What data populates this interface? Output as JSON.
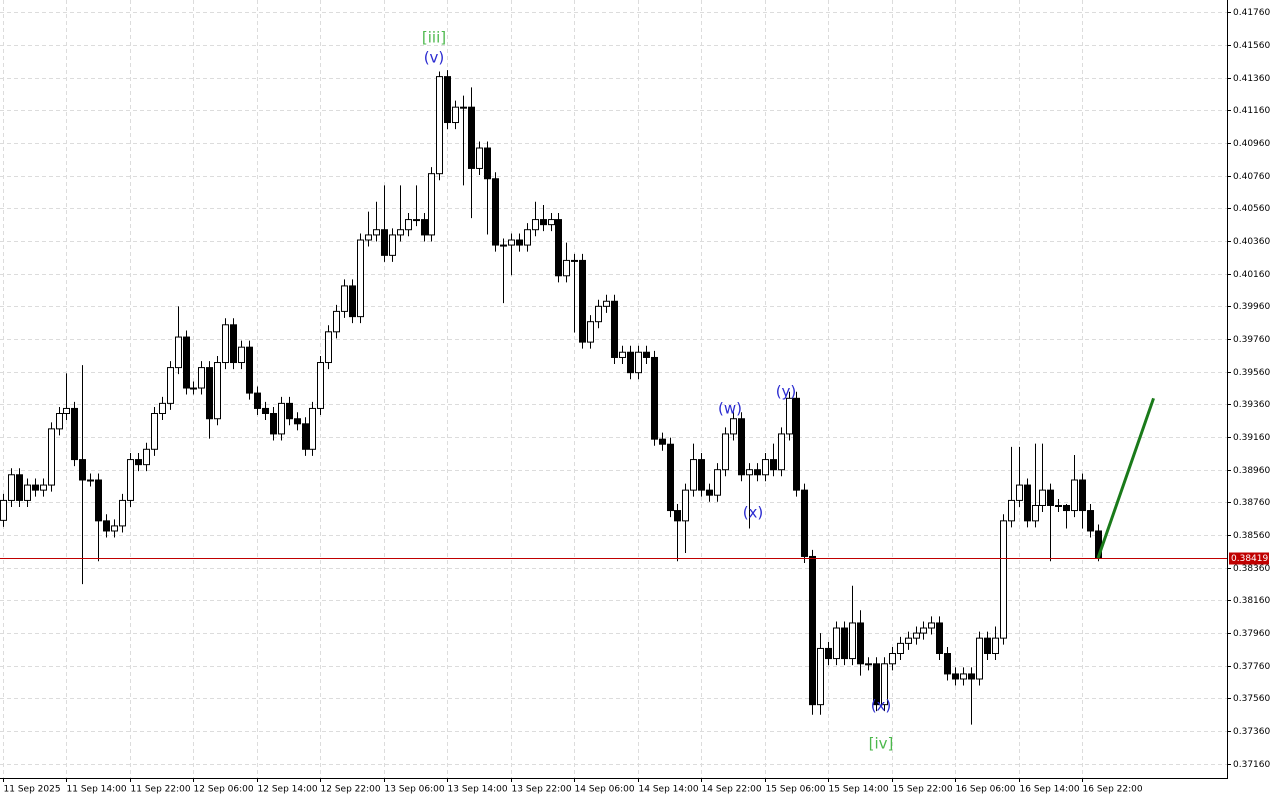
{
  "chart_data": {
    "type": "candlestick",
    "categories": [
      "11 Sep 2025",
      null,
      null,
      null,
      null,
      null,
      null,
      null,
      "11 Sep 14:00",
      null,
      null,
      null,
      null,
      null,
      null,
      null,
      "11 Sep 22:00",
      null,
      null,
      null,
      null,
      null,
      null,
      null,
      "12 Sep 06:00",
      null,
      null,
      null,
      null,
      null,
      null,
      null,
      "12 Sep 14:00",
      null,
      null,
      null,
      null,
      null,
      null,
      null,
      "12 Sep 22:00",
      null,
      null,
      null,
      null,
      null,
      null,
      null,
      "13 Sep 06:00",
      null,
      null,
      null,
      null,
      null,
      null,
      null,
      "13 Sep 14:00",
      null,
      null,
      null,
      null,
      null,
      null,
      null,
      "13 Sep 22:00",
      null,
      null,
      null,
      null,
      null,
      null,
      null,
      "14 Sep 06:00",
      null,
      null,
      null,
      null,
      null,
      null,
      null,
      "14 Sep 14:00",
      null,
      null,
      null,
      null,
      null,
      null,
      null,
      "14 Sep 22:00",
      null,
      null,
      null,
      null,
      null,
      null,
      null,
      "15 Sep 06:00",
      null,
      null,
      null,
      null,
      null,
      null,
      null,
      "15 Sep 14:00",
      null,
      null,
      null,
      null,
      null,
      null,
      null,
      "15 Sep 22:00",
      null,
      null,
      null,
      null,
      null,
      null,
      null,
      "16 Sep 06:00",
      null,
      null,
      null,
      null,
      null,
      null,
      null,
      "16 Sep 14:00",
      null,
      null,
      null,
      null,
      null,
      null,
      null,
      "16 Sep 22:00",
      null,
      null
    ],
    "open": [
      0.3865,
      0.38772,
      0.38929,
      0.38772,
      0.38866,
      0.38835,
      0.38866,
      0.3921,
      0.39304,
      0.39335,
      0.39022,
      0.38897,
      0.38897,
      0.38647,
      0.38585,
      0.38616,
      0.38772,
      0.39022,
      0.38991,
      0.39085,
      0.39304,
      0.39366,
      0.39585,
      0.39772,
      0.3946,
      0.3946,
      0.39585,
      0.39272,
      0.39616,
      0.39847,
      0.39616,
      0.3971,
      0.39429,
      0.39335,
      0.39304,
      0.39179,
      0.39366,
      0.39272,
      0.39241,
      0.39085,
      0.39335,
      0.39616,
      0.39804,
      0.39929,
      0.40085,
      0.39897,
      0.40366,
      0.40397,
      0.40429,
      0.40272,
      0.40397,
      0.40429,
      0.40491,
      0.40491,
      0.40397,
      0.40772,
      0.41366,
      0.41085,
      0.41179,
      0.41179,
      0.40804,
      0.40929,
      0.40741,
      0.40335,
      0.40335,
      0.40366,
      0.40335,
      0.40429,
      0.40491,
      0.4046,
      0.40491,
      0.40147,
      0.40241,
      0.40241,
      0.39741,
      0.39866,
      0.3996,
      0.39991,
      0.39647,
      0.39679,
      0.39554,
      0.39679,
      0.39647,
      0.39147,
      0.39116,
      0.3871,
      0.38647,
      0.38835,
      0.39022,
      0.38835,
      0.38804,
      0.3896,
      0.39179,
      0.39272,
      0.38929,
      0.3896,
      0.38929,
      0.39022,
      0.3896,
      0.39179,
      0.39397,
      0.38835,
      0.38429,
      0.37522,
      0.37866,
      0.37804,
      0.37991,
      0.37804,
      0.38022,
      0.37772,
      0.37772,
      0.37522,
      0.37772,
      0.37835,
      0.37897,
      0.37929,
      0.3796,
      0.37991,
      0.38022,
      0.37835,
      0.3771,
      0.37679,
      0.3771,
      0.37679,
      0.37929,
      0.37835,
      0.37929,
      0.38647,
      0.38772,
      0.38866,
      0.38647,
      0.38741,
      0.38835,
      0.38741,
      0.38741,
      0.3871,
      0.38897,
      0.3871,
      0.38585
    ],
    "high": [
      0.38812,
      0.38969,
      0.38969,
      0.38906,
      0.38906,
      0.38906,
      0.3925,
      0.39344,
      0.3955,
      0.39375,
      0.396,
      0.38937,
      0.38937,
      0.38687,
      0.38656,
      0.38812,
      0.39062,
      0.39062,
      0.39125,
      0.39344,
      0.39406,
      0.39625,
      0.3996,
      0.39812,
      0.395,
      0.39625,
      0.39625,
      0.39656,
      0.39887,
      0.39887,
      0.3975,
      0.3975,
      0.39469,
      0.39375,
      0.39344,
      0.39406,
      0.39406,
      0.39312,
      0.39281,
      0.39375,
      0.39656,
      0.39844,
      0.39969,
      0.40125,
      0.40125,
      0.40406,
      0.4054,
      0.406,
      0.407,
      0.40437,
      0.407,
      0.40531,
      0.407,
      0.40531,
      0.40812,
      0.41397,
      0.41406,
      0.41219,
      0.4125,
      0.413,
      0.40969,
      0.40969,
      0.40781,
      0.40375,
      0.40406,
      0.40406,
      0.40469,
      0.406,
      0.4058,
      0.40531,
      0.40531,
      0.4035,
      0.40281,
      0.40281,
      0.39906,
      0.4,
      0.40031,
      0.40031,
      0.39719,
      0.39719,
      0.39719,
      0.39719,
      0.39687,
      0.39187,
      0.39156,
      0.3875,
      0.38875,
      0.3912,
      0.39062,
      0.38875,
      0.39,
      0.39219,
      0.39312,
      0.39312,
      0.39,
      0.39,
      0.39062,
      0.3912,
      0.39219,
      0.39437,
      0.39437,
      0.38875,
      0.38469,
      0.3796,
      0.37906,
      0.38031,
      0.38031,
      0.3825,
      0.381,
      0.37812,
      0.37812,
      0.37812,
      0.37875,
      0.37937,
      0.37969,
      0.38,
      0.38031,
      0.38062,
      0.38062,
      0.37875,
      0.3775,
      0.3775,
      0.3775,
      0.37969,
      0.37969,
      0.38,
      0.38687,
      0.391,
      0.391,
      0.38906,
      0.3912,
      0.3912,
      0.38875,
      0.38781,
      0.3875,
      0.3905,
      0.38937,
      0.3875,
      0.38625
    ],
    "low": [
      0.3861,
      0.38732,
      0.38732,
      0.38732,
      0.38795,
      0.38795,
      0.38826,
      0.3917,
      0.39264,
      0.38982,
      0.3826,
      0.38857,
      0.384,
      0.38545,
      0.38545,
      0.38576,
      0.38732,
      0.38951,
      0.38951,
      0.39045,
      0.39264,
      0.39326,
      0.39545,
      0.3942,
      0.3942,
      0.3942,
      0.3915,
      0.39232,
      0.39576,
      0.39576,
      0.39576,
      0.39389,
      0.39295,
      0.39264,
      0.39139,
      0.39139,
      0.39232,
      0.39201,
      0.39045,
      0.39045,
      0.39295,
      0.39576,
      0.39764,
      0.39889,
      0.39857,
      0.39857,
      0.40326,
      0.40357,
      0.40232,
      0.40232,
      0.40357,
      0.40389,
      0.40451,
      0.40357,
      0.40357,
      0.40732,
      0.41045,
      0.41045,
      0.407,
      0.405,
      0.40764,
      0.404,
      0.40295,
      0.3998,
      0.4015,
      0.40295,
      0.40295,
      0.40389,
      0.4042,
      0.4042,
      0.40107,
      0.40107,
      0.398,
      0.39701,
      0.39701,
      0.39826,
      0.3992,
      0.39607,
      0.39607,
      0.39514,
      0.39514,
      0.39607,
      0.39107,
      0.39076,
      0.3867,
      0.384,
      0.3845,
      0.38795,
      0.38795,
      0.38764,
      0.38764,
      0.3892,
      0.39139,
      0.38889,
      0.386,
      0.38889,
      0.38889,
      0.3892,
      0.3892,
      0.39139,
      0.38795,
      0.38389,
      0.3746,
      0.3746,
      0.37764,
      0.37764,
      0.37764,
      0.37764,
      0.377,
      0.37732,
      0.37482,
      0.37482,
      0.37732,
      0.37795,
      0.37857,
      0.37889,
      0.3792,
      0.37951,
      0.37795,
      0.3767,
      0.37639,
      0.37639,
      0.374,
      0.37639,
      0.37795,
      0.37795,
      0.37889,
      0.38607,
      0.38732,
      0.38607,
      0.38607,
      0.38701,
      0.384,
      0.38701,
      0.386,
      0.3867,
      0.386,
      0.38545,
      0.384
    ],
    "close": [
      0.38772,
      0.38929,
      0.38772,
      0.38866,
      0.38835,
      0.38866,
      0.3921,
      0.39304,
      0.39335,
      0.39022,
      0.38897,
      0.38897,
      0.38647,
      0.38585,
      0.38616,
      0.38772,
      0.39022,
      0.38991,
      0.39085,
      0.39304,
      0.39366,
      0.39585,
      0.39772,
      0.3946,
      0.3946,
      0.39585,
      0.39272,
      0.39616,
      0.39847,
      0.39616,
      0.3971,
      0.39429,
      0.39335,
      0.39304,
      0.39179,
      0.39366,
      0.39272,
      0.39241,
      0.39085,
      0.39335,
      0.39616,
      0.39804,
      0.39929,
      0.40085,
      0.39897,
      0.40366,
      0.40397,
      0.40429,
      0.40272,
      0.40397,
      0.40429,
      0.40491,
      0.40491,
      0.40397,
      0.40772,
      0.41366,
      0.41085,
      0.41179,
      0.41179,
      0.40804,
      0.40929,
      0.40741,
      0.40335,
      0.40335,
      0.40366,
      0.40335,
      0.40429,
      0.40491,
      0.4046,
      0.40491,
      0.40147,
      0.40241,
      0.40241,
      0.39741,
      0.39866,
      0.3996,
      0.39991,
      0.39647,
      0.39679,
      0.39554,
      0.39679,
      0.39647,
      0.39147,
      0.39116,
      0.3871,
      0.38647,
      0.38835,
      0.39022,
      0.38835,
      0.38804,
      0.3896,
      0.39179,
      0.39272,
      0.38929,
      0.3896,
      0.38929,
      0.39022,
      0.3896,
      0.39179,
      0.39397,
      0.38835,
      0.38429,
      0.37522,
      0.37866,
      0.37804,
      0.37991,
      0.37804,
      0.38022,
      0.37772,
      0.37772,
      0.37522,
      0.37772,
      0.37835,
      0.37897,
      0.37929,
      0.3796,
      0.37991,
      0.38022,
      0.37835,
      0.3771,
      0.37679,
      0.3771,
      0.37679,
      0.37929,
      0.37835,
      0.37929,
      0.38647,
      0.38772,
      0.38866,
      0.38647,
      0.38741,
      0.38835,
      0.38741,
      0.38741,
      0.3871,
      0.38897,
      0.3871,
      0.38585,
      0.38419
    ],
    "ylim": [
      0.37073,
      0.41835
    ],
    "yticks": [
      {
        "value": 0.3716,
        "label": "0.37160"
      },
      {
        "value": 0.3736,
        "label": "0.37360"
      },
      {
        "value": 0.3756,
        "label": "0.37560"
      },
      {
        "value": 0.3776,
        "label": "0.37760"
      },
      {
        "value": 0.3796,
        "label": "0.37960"
      },
      {
        "value": 0.3816,
        "label": "0.38160"
      },
      {
        "value": 0.3836,
        "label": "0.38360"
      },
      {
        "value": 0.3856,
        "label": "0.38560"
      },
      {
        "value": 0.3876,
        "label": "0.38760"
      },
      {
        "value": 0.3896,
        "label": "0.38960"
      },
      {
        "value": 0.3916,
        "label": "0.39160"
      },
      {
        "value": 0.3936,
        "label": "0.39360"
      },
      {
        "value": 0.3956,
        "label": "0.39560"
      },
      {
        "value": 0.3976,
        "label": "0.39760"
      },
      {
        "value": 0.3996,
        "label": "0.39960"
      },
      {
        "value": 0.4016,
        "label": "0.40160"
      },
      {
        "value": 0.4036,
        "label": "0.40360"
      },
      {
        "value": 0.4056,
        "label": "0.40560"
      },
      {
        "value": 0.4076,
        "label": "0.40760"
      },
      {
        "value": 0.4096,
        "label": "0.40960"
      },
      {
        "value": 0.4116,
        "label": "0.41160"
      },
      {
        "value": 0.4136,
        "label": "0.41360"
      },
      {
        "value": 0.4156,
        "label": "0.41560"
      },
      {
        "value": 0.4176,
        "label": "0.41760"
      }
    ],
    "grid": true,
    "current_price": {
      "value": 0.38419,
      "color": "#c00000"
    },
    "forecast": {
      "x": [
        138,
        145
      ],
      "values": [
        0.38419,
        0.39397
      ],
      "color": "#1a7a1a"
    },
    "annotations": [
      {
        "text": "[iii]",
        "color": "#4cb84c"
      },
      {
        "text": "(v)",
        "color": "#2a2ad0"
      },
      {
        "text": "(w)",
        "color": "#2a2ad0"
      },
      {
        "text": "(x)",
        "color": "#2a2ad0"
      },
      {
        "text": "(y)",
        "color": "#2a2ad0"
      },
      {
        "text": "(x)",
        "color": "#2a2ad0"
      },
      {
        "text": "[iv]",
        "color": "#4cb84c"
      }
    ]
  }
}
